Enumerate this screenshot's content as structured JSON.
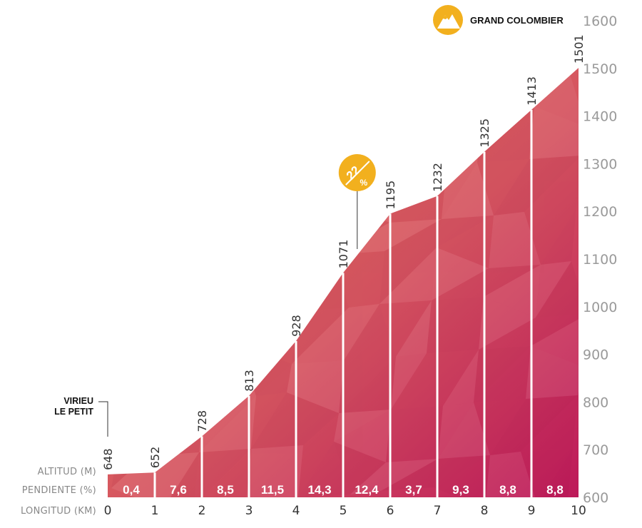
{
  "chart_data": {
    "type": "area",
    "x": [
      0,
      1,
      2,
      3,
      4,
      5,
      6,
      7,
      8,
      9,
      10
    ],
    "altitudes": [
      648,
      652,
      728,
      813,
      928,
      1071,
      1195,
      1232,
      1325,
      1413,
      1501
    ],
    "x_tick_labels": [
      "0",
      "1",
      "2",
      "3",
      "4",
      "5",
      "6",
      "7",
      "8",
      "9",
      "10"
    ],
    "y_tick_labels": [
      "600",
      "700",
      "800",
      "900",
      "1000",
      "1100",
      "1200",
      "1300",
      "1400",
      "1500",
      "1600"
    ],
    "gradients": [
      "0,4",
      "7,6",
      "8,5",
      "11,5",
      "14,3",
      "12,4",
      "3,7",
      "9,3",
      "8,8",
      "8,8"
    ],
    "ylim": [
      600,
      1600
    ],
    "xlim": [
      0,
      10
    ],
    "row_labels": {
      "altitude": "ALTITUD (M)",
      "gradient": "PENDIENTE (%)",
      "distance": "LONGITUD (KM)"
    },
    "start_label": [
      "VIRIEU",
      "LE PETIT"
    ],
    "summit_label": "GRAND COLOMBIER",
    "max_gradient_badge": {
      "value": "22",
      "unit": "%",
      "km": 5.3
    },
    "colors": {
      "fill_start": "#e26c55",
      "fill_end": "#c0185a",
      "badge": "#f2b01e",
      "axis_text": "#9a9a9a"
    }
  }
}
